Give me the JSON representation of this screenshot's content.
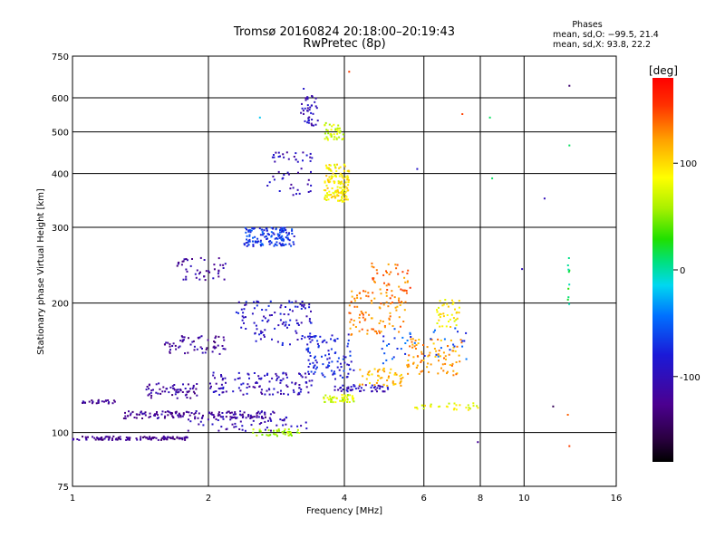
{
  "chart_data": {
    "type": "scatter",
    "title": "Tromsø 20160824 20:18:00–20:19:43",
    "subtitle": "RwPretec (8p)",
    "xlabel": "Frequency [MHz]",
    "ylabel": "Stationary phase Virtual Height [km]",
    "x_scale": "log",
    "y_scale": "log",
    "xlim": [
      1,
      16
    ],
    "ylim": [
      75,
      750
    ],
    "x_ticks": [
      1,
      2,
      4,
      6,
      8,
      10,
      16
    ],
    "y_ticks": [
      75,
      100,
      200,
      300,
      400,
      500,
      600,
      750
    ],
    "grid": true,
    "phase_stats": {
      "header": "Phases",
      "line_o": "mean, sd,O: −99.5, 21.4",
      "line_x": "mean, sd,X:  93.8, 22.2"
    },
    "colorbar": {
      "label": "[deg]",
      "min": -180,
      "max": 180,
      "ticks": [
        100,
        0,
        -100
      ],
      "colormap": "rainbow (black→purple→blue→cyan→green→yellow→orange→red)"
    },
    "traces": [
      {
        "x_range": [
          1.0,
          1.8
        ],
        "height": 97,
        "phase": -125,
        "n": 120,
        "spread": 0.01
      },
      {
        "x_range": [
          1.05,
          1.25
        ],
        "height": 118,
        "phase": -120,
        "n": 25,
        "spread": 0.01
      },
      {
        "x_range": [
          1.3,
          2.8
        ],
        "height": 110,
        "phase": -118,
        "n": 140,
        "spread": 0.02
      },
      {
        "x_range": [
          1.45,
          1.9
        ],
        "height": 125,
        "phase": -115,
        "n": 60,
        "spread": 0.04
      },
      {
        "x_range": [
          1.6,
          2.2
        ],
        "height": 160,
        "phase": -118,
        "n": 60,
        "spread": 0.05
      },
      {
        "x_range": [
          1.7,
          2.2
        ],
        "height": 240,
        "phase": -115,
        "n": 45,
        "spread": 0.06
      },
      {
        "x_range": [
          1.8,
          3.3
        ],
        "height": 105,
        "phase": -105,
        "n": 60,
        "spread": 0.04
      },
      {
        "x_range": [
          2.0,
          3.4
        ],
        "height": 130,
        "phase": -100,
        "n": 120,
        "spread": 0.06
      },
      {
        "x_range": [
          2.4,
          3.1
        ],
        "height": 285,
        "phase": -70,
        "n": 140,
        "spread": 0.05
      },
      {
        "x_range": [
          2.3,
          3.4
        ],
        "height": 180,
        "phase": -90,
        "n": 110,
        "spread": 0.12
      },
      {
        "x_range": [
          2.7,
          3.4
        ],
        "height": 400,
        "phase": -100,
        "n": 50,
        "spread": 0.12
      },
      {
        "x_range": [
          3.2,
          3.5
        ],
        "height": 560,
        "phase": -100,
        "n": 40,
        "spread": 0.08
      },
      {
        "x_range": [
          2.5,
          3.2
        ],
        "height": 100,
        "phase": 55,
        "n": 40,
        "spread": 0.02
      },
      {
        "x_range": [
          3.3,
          4.2
        ],
        "height": 150,
        "phase": -80,
        "n": 100,
        "spread": 0.12
      },
      {
        "x_range": [
          3.6,
          4.1
        ],
        "height": 380,
        "phase": 90,
        "n": 140,
        "spread": 0.1
      },
      {
        "x_range": [
          3.6,
          4.0
        ],
        "height": 500,
        "phase": 70,
        "n": 40,
        "spread": 0.05
      },
      {
        "x_range": [
          3.6,
          4.2
        ],
        "height": 120,
        "phase": 70,
        "n": 50,
        "spread": 0.02
      },
      {
        "x_range": [
          3.8,
          5.0
        ],
        "height": 127,
        "phase": -100,
        "n": 50,
        "spread": 0.02
      },
      {
        "x_range": [
          4.1,
          5.5
        ],
        "height": 190,
        "phase": 130,
        "n": 100,
        "spread": 0.12
      },
      {
        "x_range": [
          4.3,
          5.4
        ],
        "height": 135,
        "phase": 110,
        "n": 50,
        "spread": 0.05
      },
      {
        "x_range": [
          4.6,
          5.6
        ],
        "height": 230,
        "phase": 135,
        "n": 40,
        "spread": 0.08
      },
      {
        "x_range": [
          5.5,
          7.3
        ],
        "height": 150,
        "phase": 120,
        "n": 90,
        "spread": 0.1
      },
      {
        "x_range": [
          6.4,
          7.2
        ],
        "height": 190,
        "phase": 90,
        "n": 40,
        "spread": 0.08
      },
      {
        "x_range": [
          5.7,
          8.0
        ],
        "height": 115,
        "phase": 80,
        "n": 30,
        "spread": 0.02
      },
      {
        "x_range": [
          4.8,
          7.5
        ],
        "height": 160,
        "phase": -60,
        "n": 40,
        "spread": 0.1
      },
      {
        "x_range": [
          12.5,
          12.6
        ],
        "height": 220,
        "phase": 10,
        "n": 10,
        "spread": 0.15
      }
    ],
    "isolated_points": [
      {
        "x": 3.25,
        "y": 630,
        "phase": -90
      },
      {
        "x": 4.1,
        "y": 690,
        "phase": 150
      },
      {
        "x": 7.3,
        "y": 550,
        "phase": 150
      },
      {
        "x": 8.4,
        "y": 540,
        "phase": 10
      },
      {
        "x": 12.6,
        "y": 640,
        "phase": -140
      },
      {
        "x": 2.6,
        "y": 540,
        "phase": -20
      },
      {
        "x": 5.8,
        "y": 410,
        "phase": -90
      },
      {
        "x": 8.5,
        "y": 390,
        "phase": 10
      },
      {
        "x": 11.1,
        "y": 350,
        "phase": -100
      },
      {
        "x": 12.6,
        "y": 465,
        "phase": 10
      },
      {
        "x": 9.9,
        "y": 240,
        "phase": -100
      },
      {
        "x": 7.9,
        "y": 95,
        "phase": -120
      },
      {
        "x": 12.6,
        "y": 93,
        "phase": 150
      },
      {
        "x": 12.5,
        "y": 110,
        "phase": 140
      },
      {
        "x": 11.6,
        "y": 115,
        "phase": -150
      }
    ]
  }
}
